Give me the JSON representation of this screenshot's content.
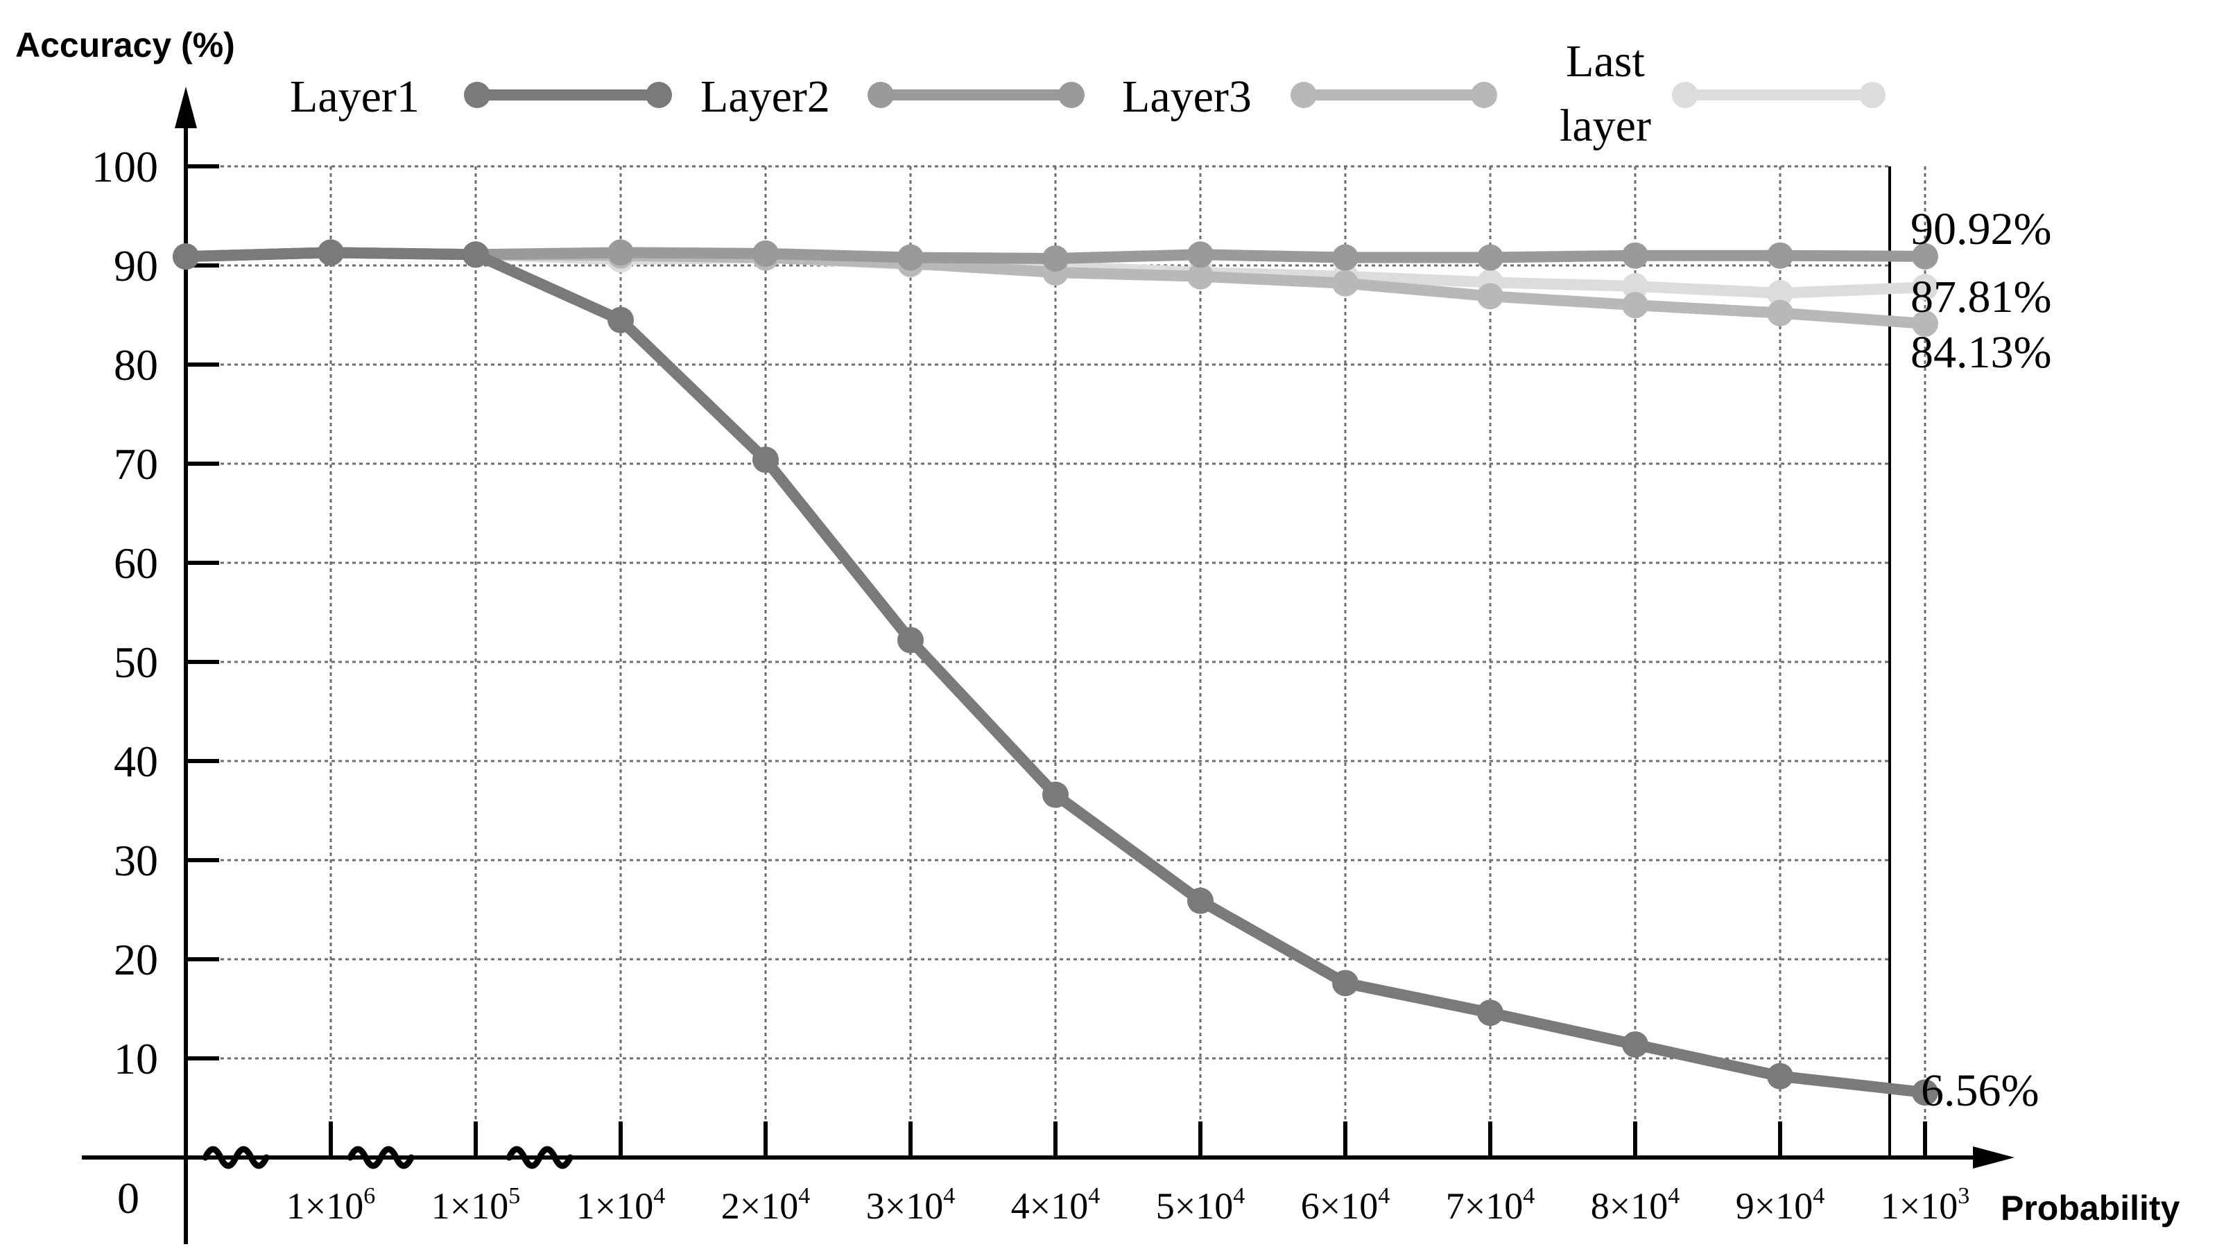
{
  "chart_data": {
    "type": "line",
    "ylabel": "Accuracy (%)",
    "xlabel": "Probability",
    "y_zero_label": "0",
    "ylim": [
      0,
      100
    ],
    "yticks": [
      10,
      20,
      30,
      40,
      50,
      60,
      70,
      80,
      90,
      100
    ],
    "x_leading_label": "",
    "categories": [
      {
        "base": "",
        "exp": ""
      },
      {
        "base": "1×10",
        "exp": "6"
      },
      {
        "base": "1×10",
        "exp": "5"
      },
      {
        "base": "1×10",
        "exp": "4"
      },
      {
        "base": "2×10",
        "exp": "4"
      },
      {
        "base": "3×10",
        "exp": "4"
      },
      {
        "base": "4×10",
        "exp": "4"
      },
      {
        "base": "5×10",
        "exp": "4"
      },
      {
        "base": "6×10",
        "exp": "4"
      },
      {
        "base": "7×10",
        "exp": "4"
      },
      {
        "base": "8×10",
        "exp": "4"
      },
      {
        "base": "9×10",
        "exp": "4"
      },
      {
        "base": "1×10",
        "exp": "3"
      }
    ],
    "grid": true,
    "axis_breaks": 3,
    "legend_position": "top",
    "series": [
      {
        "name": "Layer1",
        "color": "#7a7a7a",
        "values": [
          90.9,
          91.3,
          91.1,
          84.5,
          70.4,
          52.2,
          36.6,
          25.9,
          17.6,
          14.6,
          11.4,
          8.2,
          6.56
        ]
      },
      {
        "name": "Layer2",
        "color": "#9a9a9a",
        "values": [
          90.9,
          91.3,
          91.1,
          91.3,
          91.2,
          90.8,
          90.7,
          91.1,
          90.8,
          90.8,
          91.0,
          91.0,
          90.92
        ]
      },
      {
        "name": "Layer3",
        "color": "#b8b8b8",
        "values": [
          90.9,
          91.3,
          91.1,
          91.0,
          90.8,
          90.2,
          89.3,
          88.9,
          88.2,
          86.9,
          86.0,
          85.2,
          84.13
        ]
      },
      {
        "name": "Last layer",
        "name_lines": [
          "Last",
          "layer"
        ],
        "color": "#dcdcdc",
        "values": [
          90.9,
          91.3,
          91.1,
          90.6,
          90.8,
          90.1,
          89.9,
          89.3,
          88.9,
          88.3,
          87.9,
          87.2,
          87.81
        ]
      }
    ],
    "end_annotations": [
      {
        "series": "Layer2",
        "text": "90.92%"
      },
      {
        "series": "Last layer",
        "text": "87.81%"
      },
      {
        "series": "Layer3",
        "text": "84.13%"
      },
      {
        "series": "Layer1",
        "text": "6.56%"
      }
    ]
  }
}
